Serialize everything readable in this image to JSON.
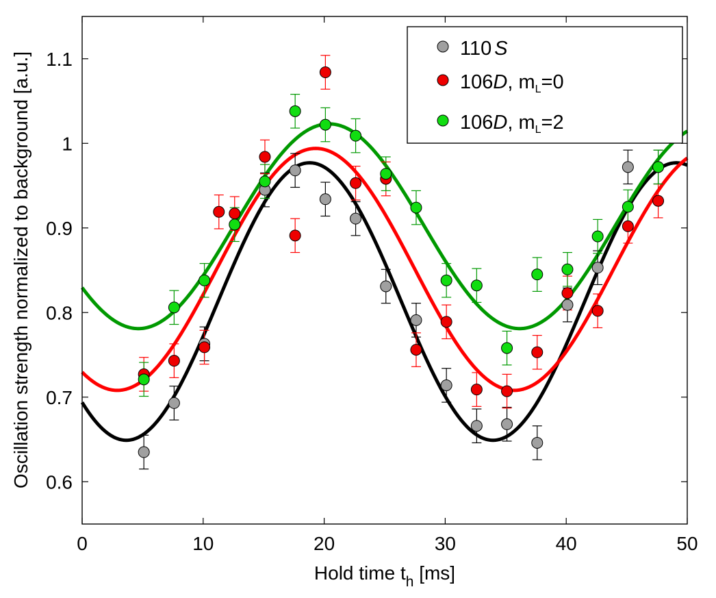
{
  "chart_data": {
    "type": "scatter",
    "xlabel": "Hold time t",
    "xlabel_sub": "h",
    "xlabel_unit": " [ms]",
    "ylabel": "Oscillation strength normalized to background [a.u.]",
    "xlim": [
      0,
      50
    ],
    "ylim": [
      0.55,
      1.15
    ],
    "xticks": [
      0,
      10,
      20,
      30,
      40,
      50
    ],
    "yticks": [
      0.6,
      0.7,
      0.8,
      0.9,
      1.0,
      1.1
    ],
    "ytick_labels": [
      "0.6",
      "0.7",
      "0.8",
      "0.9",
      "1",
      "1.1"
    ],
    "legend_position": "top-right",
    "series": [
      {
        "name": "110 S",
        "legend": {
          "num": "110",
          "state": "S",
          "sub": ""
        },
        "marker_color": "#a0a0a0",
        "line_color": "#000000",
        "error": 0.02,
        "fit": {
          "offset": 0.813,
          "amplitude": 0.164,
          "period": 30.3,
          "peak_time": 18.8
        },
        "x": [
          5.1,
          7.6,
          10.1,
          15.1,
          17.6,
          20.1,
          22.6,
          25.1,
          27.6,
          30.1,
          32.6,
          35.1,
          37.6,
          40.1,
          42.6,
          45.1,
          47.6
        ],
        "y": [
          0.635,
          0.693,
          0.763,
          0.945,
          0.968,
          0.934,
          0.911,
          0.831,
          0.791,
          0.714,
          0.666,
          0.668,
          0.646,
          0.809,
          0.853,
          0.972,
          0.972
        ]
      },
      {
        "name": "106 D, m_L=0",
        "legend": {
          "num": "106",
          "state": "D",
          "sub": ", m",
          "sub_l": "L",
          "eq": "=0"
        },
        "marker_color": "#ee0000",
        "line_color": "#ff0000",
        "error": 0.02,
        "fit": {
          "offset": 0.851,
          "amplitude": 0.143,
          "period": 32.8,
          "peak_time": 19.3
        },
        "x": [
          5.1,
          7.6,
          10.1,
          11.3,
          12.6,
          15.1,
          17.6,
          20.1,
          22.6,
          25.1,
          27.6,
          30.1,
          32.6,
          35.1,
          37.6,
          40.1,
          42.6,
          45.1,
          47.6
        ],
        "y": [
          0.727,
          0.743,
          0.759,
          0.919,
          0.917,
          0.984,
          0.891,
          1.084,
          0.953,
          0.958,
          0.756,
          0.789,
          0.709,
          0.707,
          0.753,
          0.823,
          0.802,
          0.902,
          0.932
        ]
      },
      {
        "name": "106 D, m_L=2",
        "legend": {
          "num": "106",
          "state": "D",
          "sub": ", m",
          "sub_l": "L",
          "eq": "=2"
        },
        "marker_color": "#11dd11",
        "line_color": "#009900",
        "error": 0.02,
        "fit": {
          "offset": 0.902,
          "amplitude": 0.121,
          "period": 31.5,
          "peak_time": 20.4
        },
        "x": [
          5.1,
          7.6,
          10.1,
          12.6,
          15.1,
          17.6,
          20.1,
          22.6,
          25.1,
          27.6,
          30.1,
          32.6,
          35.1,
          37.6,
          40.1,
          42.6,
          45.1,
          47.6
        ],
        "y": [
          0.721,
          0.806,
          0.838,
          0.904,
          0.955,
          1.038,
          1.022,
          1.009,
          0.964,
          0.924,
          0.838,
          0.832,
          0.758,
          0.845,
          0.851,
          0.89,
          0.925,
          0.972
        ]
      }
    ]
  }
}
